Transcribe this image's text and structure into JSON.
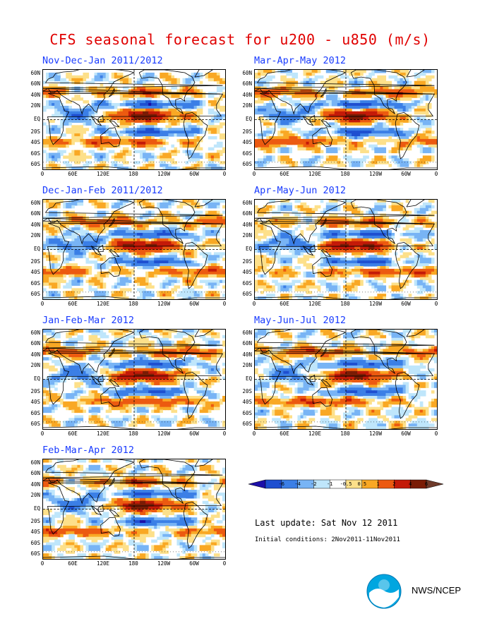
{
  "title": "CFS seasonal forecast for u200 - u850 (m/s)",
  "panels": [
    {
      "title": "Nov-Dec-Jan 2011/2012"
    },
    {
      "title": "Mar-Apr-May 2012"
    },
    {
      "title": "Dec-Jan-Feb 2011/2012"
    },
    {
      "title": "Apr-May-Jun 2012"
    },
    {
      "title": "Jan-Feb-Mar 2012"
    },
    {
      "title": "May-Jun-Jul 2012"
    },
    {
      "title": "Feb-Mar-Apr 2012"
    }
  ],
  "lat_labels": [
    "60N",
    "60N",
    "40N",
    "20N",
    "EQ",
    "20S",
    "40S",
    "60S",
    "60S"
  ],
  "lon_labels": [
    "0",
    "60E",
    "120E",
    "180",
    "120W",
    "60W",
    "0"
  ],
  "colorbar": {
    "labels": [
      "-6",
      "-4",
      "-2",
      "-1",
      "-0.5",
      "0.5",
      "1",
      "2",
      "4",
      "6"
    ],
    "colors": [
      "#1c0fa8",
      "#1e4fd0",
      "#3b7fe6",
      "#78b4f5",
      "#bfe6fb",
      "#ffffff",
      "#fde08a",
      "#f9a824",
      "#ec5a10",
      "#c41a08",
      "#7a1c05",
      "#6e3a2a"
    ]
  },
  "last_update": "Last update: Sat Nov 12 2011",
  "initial_conditions": "Initial conditions: 2Nov2011-11Nov2011",
  "agency": "NWS/NCEP"
}
